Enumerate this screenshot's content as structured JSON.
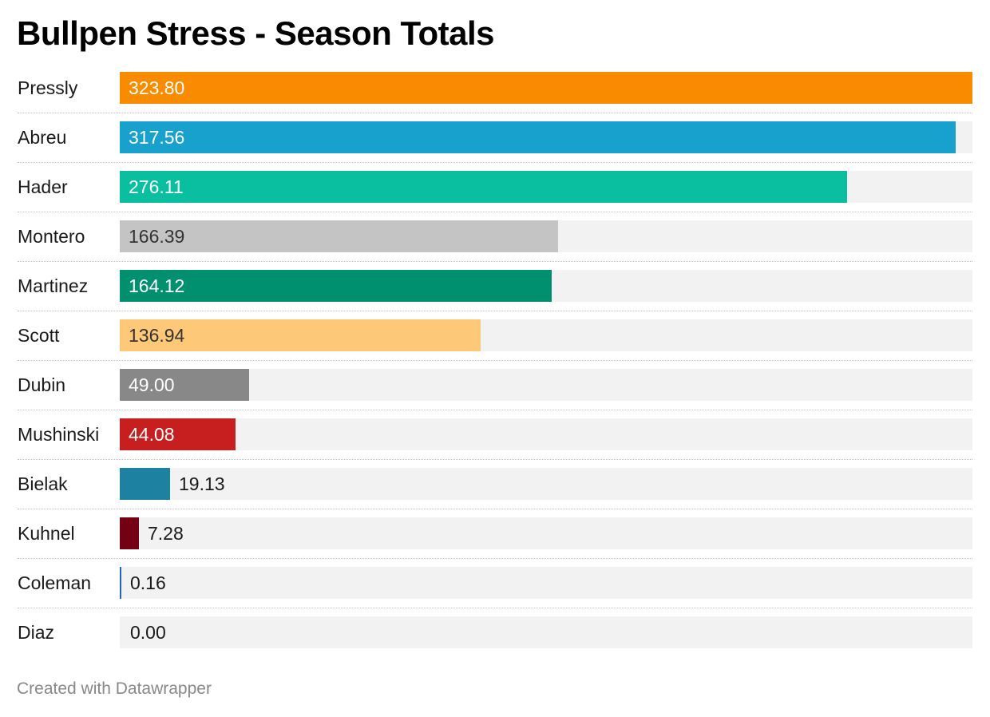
{
  "chart_data": {
    "type": "bar",
    "orientation": "horizontal",
    "title": "Bullpen Stress - Season Totals",
    "categories": [
      "Pressly",
      "Abreu",
      "Hader",
      "Montero",
      "Martinez",
      "Scott",
      "Dubin",
      "Mushinski",
      "Bielak",
      "Kuhnel",
      "Coleman",
      "Diaz"
    ],
    "values": [
      323.8,
      317.56,
      276.11,
      166.39,
      164.12,
      136.94,
      49.0,
      44.08,
      19.13,
      7.28,
      0.16,
      0.0
    ],
    "value_labels": [
      "323.80",
      "317.56",
      "276.11",
      "166.39",
      "164.12",
      "136.94",
      "49.00",
      "44.08",
      "19.13",
      "7.28",
      "0.16",
      "0.00"
    ],
    "bar_colors": [
      "#f98b00",
      "#18a1cd",
      "#09bfa0",
      "#c4c4c4",
      "#00906f",
      "#fdc877",
      "#888888",
      "#c71f1f",
      "#1d81a2",
      "#730013",
      "#1f64be",
      "#cccccc"
    ],
    "label_colors": [
      "#ffffff",
      "#ffffff",
      "#ffffff",
      "#333333",
      "#ffffff",
      "#333333",
      "#ffffff",
      "#ffffff",
      "#1a1a1a",
      "#1a1a1a",
      "#1a1a1a",
      "#1a1a1a"
    ],
    "xlim": [
      0,
      323.8
    ],
    "grid": false,
    "legend": "none",
    "track_color": "#f2f2f2"
  },
  "footer": {
    "credit": "Created with Datawrapper"
  }
}
